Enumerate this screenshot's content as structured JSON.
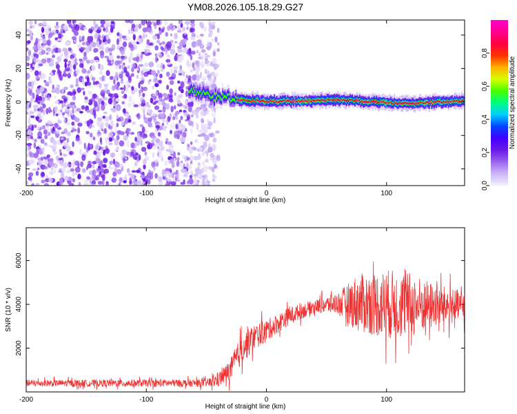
{
  "figure": {
    "title": "YM08.2026.105.18.29.G27"
  },
  "chart_data": [
    {
      "type": "heatmap",
      "xlabel": "Height of straight line (km)",
      "ylabel": "Frequency (Hz)",
      "xlim": [
        -200,
        165
      ],
      "ylim": [
        -50,
        49
      ],
      "xticks": [
        -200,
        -100,
        0,
        100
      ],
      "xtick_labels": [
        "-200",
        "-100",
        "0",
        "100"
      ],
      "yticks": [
        -40,
        -20,
        0,
        20,
        40
      ],
      "ytick_labels": [
        "-40",
        "-20",
        "0",
        "20",
        "40"
      ],
      "noise_region_x": [
        -200,
        -40
      ],
      "ridge": {
        "start_x": -65,
        "end_x": 165,
        "center_frequency_hz": 0.5,
        "points": [
          {
            "x": -65,
            "y": 8
          },
          {
            "x": -55,
            "y": 5
          },
          {
            "x": -45,
            "y": 3
          },
          {
            "x": -35,
            "y": 3
          },
          {
            "x": -20,
            "y": 1
          },
          {
            "x": 0,
            "y": 0.5
          },
          {
            "x": 40,
            "y": 0.5
          },
          {
            "x": 55,
            "y": 1.5
          },
          {
            "x": 80,
            "y": 0.5
          },
          {
            "x": 120,
            "y": -1
          },
          {
            "x": 140,
            "y": 0
          },
          {
            "x": 165,
            "y": 0.5
          }
        ]
      },
      "grid": false,
      "colorbar": {
        "label": "Normalized spectral amplitude",
        "range": [
          0.0,
          1.0
        ],
        "ticks": [
          0.0,
          0.2,
          0.4,
          0.6,
          0.8
        ],
        "tick_labels": [
          "0.0",
          "0.2",
          "0.4",
          "0.6",
          "0.8"
        ],
        "colormap_stops": [
          "#f4f0fe",
          "#cdb8f8",
          "#9b64ee",
          "#6a1ae6",
          "#4400ff",
          "#0044ff",
          "#00ccff",
          "#00ff80",
          "#44ff00",
          "#d8ff00",
          "#ffb000",
          "#ff3000",
          "#ff0040",
          "#ff0090",
          "#ff00d0"
        ]
      }
    },
    {
      "type": "line",
      "xlabel": "Height of straight line (km)",
      "ylabel": "SNR (10 * v/v)",
      "xlim": [
        -200,
        165
      ],
      "ylim": [
        0,
        7500
      ],
      "xticks": [
        -200,
        -100,
        0,
        100
      ],
      "xtick_labels": [
        "-200",
        "-100",
        "0",
        "100"
      ],
      "yticks": [
        2000,
        4000,
        6000
      ],
      "ytick_labels": [
        "2000",
        "4000",
        "6000"
      ],
      "grid": false,
      "series": [
        {
          "color": "#ee3333",
          "envelope": [
            {
              "x": -200,
              "y": 400
            },
            {
              "x": -50,
              "y": 400
            },
            {
              "x": -40,
              "y": 550
            },
            {
              "x": -30,
              "y": 1000
            },
            {
              "x": -20,
              "y": 2000
            },
            {
              "x": -10,
              "y": 2500
            },
            {
              "x": 0,
              "y": 2800
            },
            {
              "x": 20,
              "y": 3500
            },
            {
              "x": 40,
              "y": 3900
            },
            {
              "x": 60,
              "y": 4050
            },
            {
              "x": 80,
              "y": 4050
            },
            {
              "x": 100,
              "y": 4000
            },
            {
              "x": 130,
              "y": 3950
            },
            {
              "x": 165,
              "y": 3900
            }
          ],
          "noise_amplitude": [
            {
              "x": -200,
              "y": 150
            },
            {
              "x": -50,
              "y": 180
            },
            {
              "x": -35,
              "y": 400
            },
            {
              "x": -20,
              "y": 700
            },
            {
              "x": 0,
              "y": 500
            },
            {
              "x": 40,
              "y": 300
            },
            {
              "x": 60,
              "y": 500
            },
            {
              "x": 75,
              "y": 1300
            },
            {
              "x": 100,
              "y": 1600
            },
            {
              "x": 120,
              "y": 1500
            },
            {
              "x": 140,
              "y": 1000
            },
            {
              "x": 165,
              "y": 700
            }
          ]
        }
      ]
    }
  ]
}
